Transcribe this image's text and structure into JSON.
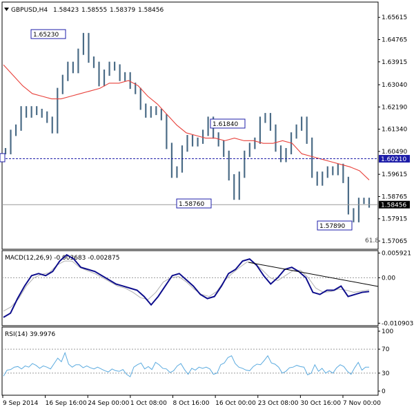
{
  "colors": {
    "background": "#ffffff",
    "frame": "#000000",
    "candle": "#4a6b86",
    "moving_average": "#e8403a",
    "level_line": "#1c1ca8",
    "current_line": "#9a9a9a",
    "macd": "#0d0d8c",
    "macd_signal": "#b0b0b0",
    "rsi": "#5aaadf",
    "rsi_levels": "#9a9a9a",
    "trendline": "#000000"
  },
  "chart_data": [
    {
      "type": "line",
      "title": "GBPUSD,H4",
      "ohlc": {
        "open": "1.58423",
        "high": "1.58555",
        "low": "1.58379",
        "close": "1.58456"
      },
      "series": [
        {
          "values": [
            1.605,
            1.612,
            1.614,
            1.621,
            1.619,
            1.621,
            1.62,
            1.619,
            1.617,
            1.613,
            1.628,
            1.633,
            1.638,
            1.636,
            1.643,
            1.649,
            1.64,
            1.638,
            1.631,
            1.635,
            1.638,
            1.637,
            1.633,
            1.634,
            1.63,
            1.628,
            1.622,
            1.619,
            1.621,
            1.62,
            1.618,
            1.607,
            1.596,
            1.598,
            1.606,
            1.61,
            1.608,
            1.609,
            1.612,
            1.617,
            1.611,
            1.608,
            1.604,
            1.595,
            1.5876,
            1.596,
            1.604,
            1.607,
            1.609,
            1.617,
            1.6184,
            1.614,
            1.606,
            1.602,
            1.605,
            1.611,
            1.614,
            1.617,
            1.609,
            1.596,
            1.593,
            1.596,
            1.598,
            1.597,
            1.599,
            1.594,
            1.582,
            1.579,
            1.586,
            1.586,
            1.5846
          ]
        },
        {
          "values": [
            1.638,
            1.634,
            1.63,
            1.627,
            1.626,
            1.625,
            1.625,
            1.626,
            1.627,
            1.628,
            1.629,
            1.631,
            1.631,
            1.632,
            1.63,
            1.626,
            1.623,
            1.619,
            1.615,
            1.612,
            1.611,
            1.61,
            1.61,
            1.609,
            1.61,
            1.609,
            1.609,
            1.608,
            1.608,
            1.609,
            1.608,
            1.604,
            1.603,
            1.602,
            1.601,
            1.6,
            1.599,
            1.5975,
            1.594
          ]
        },
        {
          "name": "1.60210",
          "values": [
            1.6021
          ]
        },
        {
          "name": "1.58456",
          "values": [
            1.58456
          ]
        }
      ],
      "annotations": [
        "1.65230",
        "1.61840",
        "1.58760",
        "1.57890",
        "61.8"
      ],
      "ylim": [
        1.5675,
        1.662
      ],
      "ticks": [
        "1.65615",
        "1.64765",
        "1.63915",
        "1.63040",
        "1.62190",
        "1.61340",
        "1.60490",
        "1.59615",
        "1.58765",
        "1.57915",
        "1.57065"
      ],
      "grid": false
    },
    {
      "type": "line",
      "title": "MACD(12,26,9) -0.003683 -0.002875",
      "series": [
        {
          "values": [
            -0.0095,
            -0.0085,
            -0.005,
            -0.002,
            0.0005,
            0.001,
            0.0005,
            0.0015,
            0.004,
            0.0055,
            0.0045,
            0.0025,
            0.002,
            0.0015,
            0.0005,
            -0.0005,
            -0.0015,
            -0.002,
            -0.0025,
            -0.003,
            -0.0045,
            -0.0065,
            -0.0045,
            -0.002,
            0.0005,
            0.001,
            -0.0005,
            -0.002,
            -0.004,
            -0.005,
            -0.0045,
            -0.002,
            0.001,
            0.002,
            0.004,
            0.0045,
            0.003,
            0.0005,
            -0.0015,
            0,
            0.002,
            0.0025,
            0.0015,
            0,
            -0.0035,
            -0.004,
            -0.003,
            -0.003,
            -0.002,
            -0.0045,
            -0.004,
            -0.0035,
            -0.0033
          ]
        },
        {
          "values": [
            -0.008,
            -0.007,
            -0.005,
            -0.002,
            0.0,
            0.0008,
            0.0012,
            0.003,
            0.004,
            0.004,
            0.0025,
            0.0017,
            0.001,
            0.0,
            -0.001,
            -0.002,
            -0.0025,
            -0.0035,
            -0.0048,
            -0.0052,
            -0.0035,
            -0.001,
            0.0,
            0.0003,
            -0.001,
            -0.0027,
            -0.004,
            -0.0045,
            -0.0033,
            -0.0007,
            0.001,
            0.0025,
            0.0038,
            0.0035,
            0.0018,
            0.0,
            -0.0007,
            0.0005,
            0.0017,
            0.0018,
            0.0,
            -0.0025,
            -0.0035,
            -0.0033,
            -0.0027,
            -0.003,
            -0.0035,
            -0.0032,
            -0.0029
          ]
        }
      ],
      "ylim": [
        -0.0115,
        0.0065
      ],
      "ticks": [
        "0.005921",
        "0.00",
        "-0.010903"
      ]
    },
    {
      "type": "line",
      "title": "RSI(14) 39.9976",
      "series": [
        {
          "values": [
            25,
            35,
            36,
            40,
            41,
            37,
            42,
            40,
            46,
            43,
            38,
            42,
            40,
            37,
            46,
            55,
            49,
            64,
            45,
            40,
            44,
            44,
            39,
            42,
            39,
            37,
            40,
            37,
            34,
            32,
            37,
            34,
            33,
            36,
            28,
            24,
            40,
            44,
            47,
            37,
            41,
            36,
            48,
            44,
            38,
            37,
            31,
            34,
            42,
            46,
            36,
            28,
            38,
            35,
            40,
            38,
            40,
            37,
            28,
            30,
            44,
            47,
            56,
            59,
            46,
            40,
            38,
            35,
            34,
            41,
            45,
            44,
            51,
            59,
            47,
            45,
            40,
            30,
            33,
            39,
            40,
            43,
            41,
            40,
            27,
            30,
            44,
            33,
            38,
            30,
            34,
            30,
            39,
            44,
            41,
            33,
            28,
            39,
            48,
            35,
            40,
            40
          ]
        }
      ],
      "ylim": [
        0,
        100
      ],
      "ticks": [
        "100",
        "70",
        "30",
        "0"
      ]
    }
  ],
  "x_axis": {
    "labels": [
      "9 Sep 2014",
      "16 Sep 16:00",
      "24 Sep 00:00",
      "1 Oct 08:00",
      "8 Oct 16:00",
      "16 Oct 00:00",
      "23 Oct 08:00",
      "30 Oct 16:00",
      "7 Nov 00:00"
    ]
  }
}
